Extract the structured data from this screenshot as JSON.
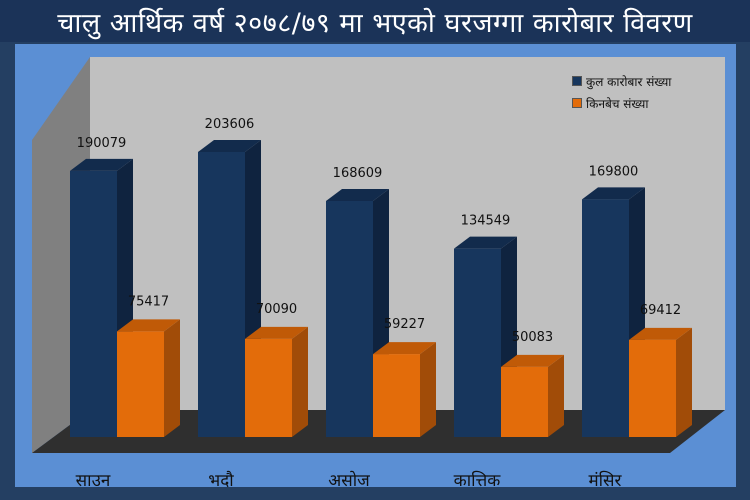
{
  "title": "चालु आर्थिक वर्ष २०७८/७९ मा भएको घरजग्गा कारोबार विवरण",
  "colors": {
    "series1": "#17365d",
    "series1_side": "#0f233f",
    "series1_top": "#122b4c",
    "series2": "#e36c0a",
    "series2_side": "#a14c08",
    "series2_top": "#c05a07",
    "back_wall": "#c0c0c0",
    "side_wall": "#808080",
    "floor": "#2f2f2f"
  },
  "chart_data": {
    "type": "bar",
    "title": "चालु आर्थिक वर्ष २०७८/७९ मा भएको घरजग्गा कारोबार विवरण",
    "categories": [
      "साउन",
      "भदौ",
      "असोज",
      "कात्तिक",
      "मंसिर"
    ],
    "series": [
      {
        "name": "कुल कारोबार  संख्या",
        "values": [
          190079,
          203606,
          168609,
          134549,
          169800
        ]
      },
      {
        "name": "किनबेच  संख्या",
        "values": [
          75417,
          70090,
          59227,
          50083,
          69412
        ]
      }
    ],
    "data_labels": true,
    "legend_position": "top-right",
    "grid": false,
    "ylim": [
      0,
      210000
    ]
  }
}
